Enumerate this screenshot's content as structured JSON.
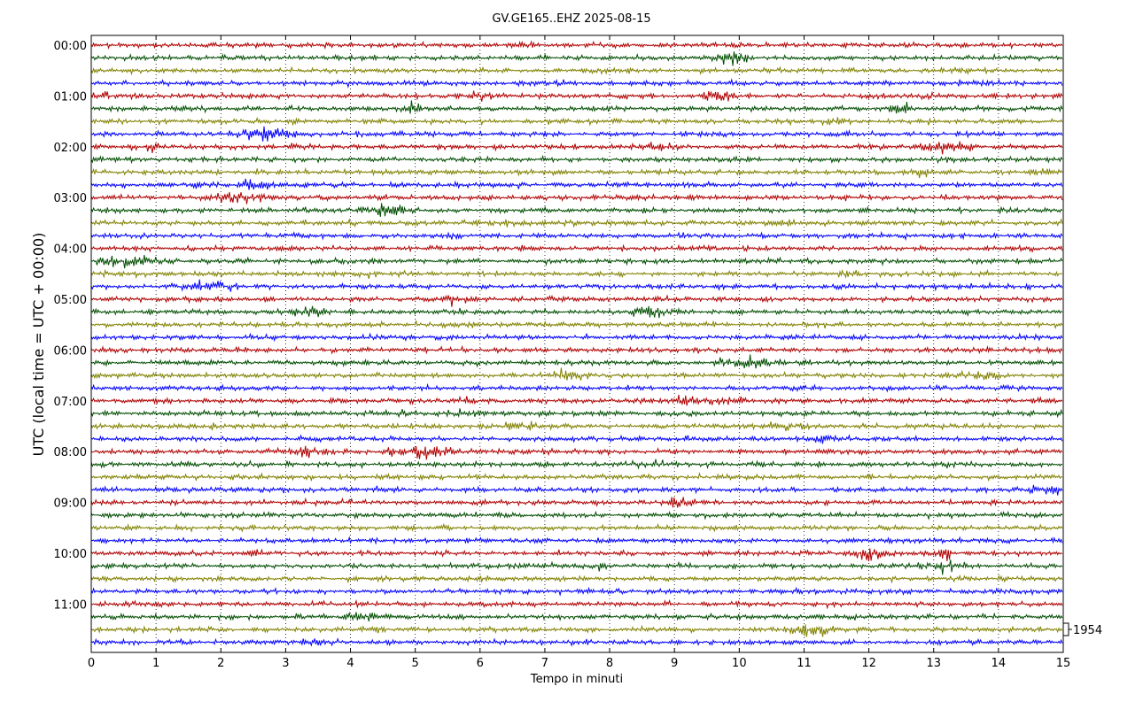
{
  "chart_data": {
    "type": "line",
    "title": "GV.GE165..EHZ 2025-08-15",
    "xlabel": "Tempo in minuti",
    "ylabel": "UTC (local time = UTC + 00:00)",
    "xlim": [
      0,
      15
    ],
    "x_ticks": [
      0,
      1,
      2,
      3,
      4,
      5,
      6,
      7,
      8,
      9,
      10,
      11,
      12,
      13,
      14,
      15
    ],
    "y_tick_labels": [
      "00:00",
      "01:00",
      "02:00",
      "03:00",
      "04:00",
      "05:00",
      "06:00",
      "07:00",
      "08:00",
      "09:00",
      "10:00",
      "11:00"
    ],
    "trace_count": 48,
    "minutes_per_trace": 15,
    "color_cycle": [
      "#b00000",
      "#004d00",
      "#808000",
      "#0000ff"
    ],
    "scale_label": "1954",
    "grid": true
  }
}
